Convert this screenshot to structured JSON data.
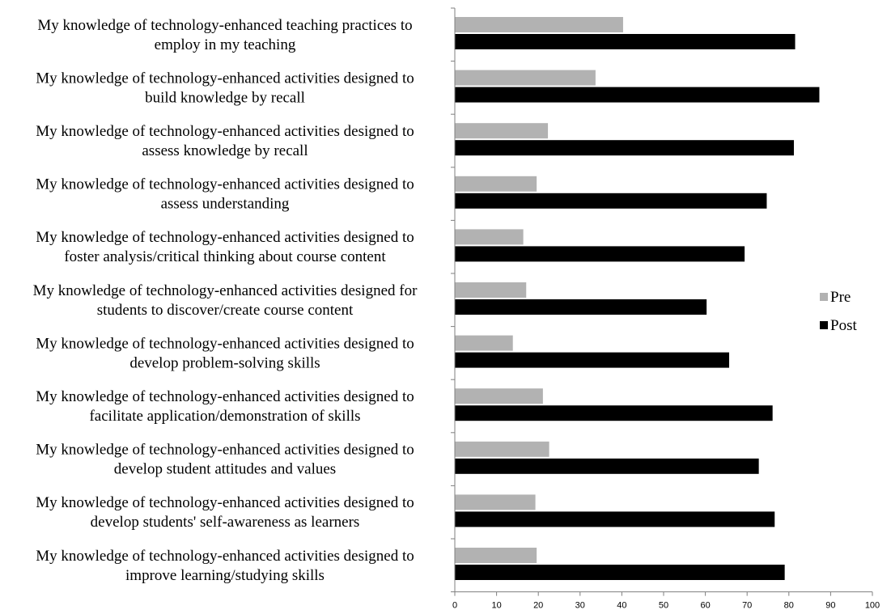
{
  "chart_data": {
    "type": "bar",
    "orientation": "horizontal",
    "categories": [
      [
        "My knowledge of technology-enhanced teaching practices to",
        "employ in my teaching"
      ],
      [
        "My knowledge of technology-enhanced activities designed to",
        "build knowledge by recall"
      ],
      [
        "My knowledge of technology-enhanced activities designed to",
        "assess knowledge by recall"
      ],
      [
        "My knowledge of technology-enhanced activities designed to",
        "assess understanding"
      ],
      [
        "My knowledge of technology-enhanced activities designed to",
        "foster analysis/critical thinking about course content"
      ],
      [
        "My knowledge of technology-enhanced activities designed for",
        "students to discover/create course content"
      ],
      [
        "My knowledge of technology-enhanced activities designed to",
        "develop problem-solving skills"
      ],
      [
        "My knowledge of technology-enhanced activities designed to",
        "facilitate application/demonstration of skills"
      ],
      [
        "My knowledge of technology-enhanced activities designed to",
        "develop student attitudes and values"
      ],
      [
        "My knowledge of technology-enhanced activities designed to",
        "develop students' self-awareness as learners"
      ],
      [
        "My knowledge of technology-enhanced activities designed to",
        "improve learning/studying skills"
      ]
    ],
    "series": [
      {
        "name": "Pre",
        "color": "#b2b2b2",
        "values": [
          40.3,
          33.7,
          22.3,
          19.6,
          16.4,
          17.1,
          13.9,
          21.1,
          22.6,
          19.3,
          19.6
        ]
      },
      {
        "name": "Post",
        "color": "#000000",
        "values": [
          81.5,
          87.3,
          81.2,
          74.7,
          69.4,
          60.3,
          65.7,
          76.1,
          72.8,
          76.6,
          79.0
        ]
      }
    ],
    "xlim": [
      0,
      100
    ],
    "xticks": [
      0,
      10,
      20,
      30,
      40,
      50,
      60,
      70,
      80,
      90,
      100
    ],
    "title": "",
    "xlabel": "",
    "ylabel": "",
    "grid": false,
    "legend_position": "right"
  }
}
